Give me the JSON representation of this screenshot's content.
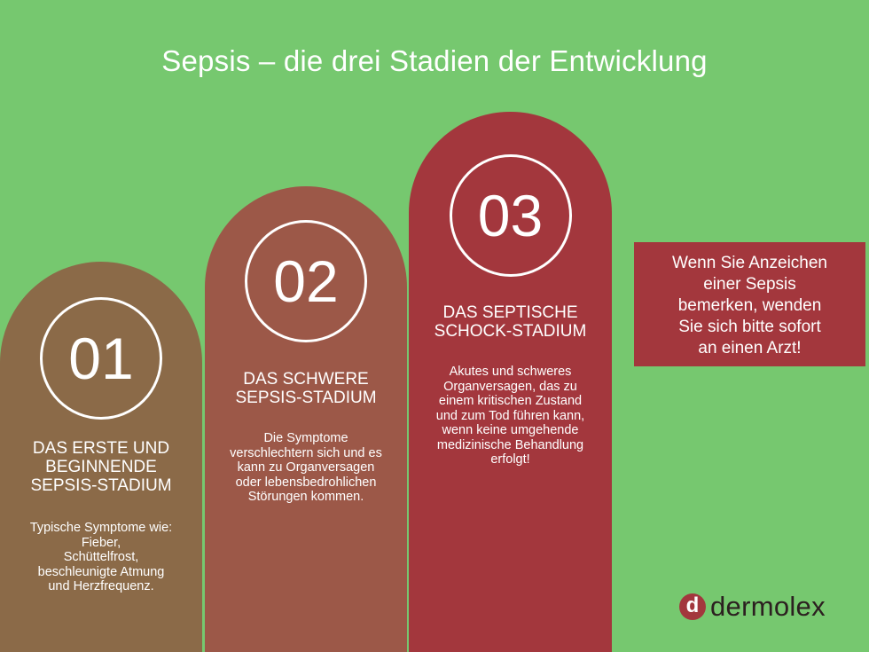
{
  "title": "Sepsis – die drei Stadien der Entwicklung",
  "stages": [
    {
      "number": "01",
      "heading": "DAS ERSTE UND\nBEGINNENDE\nSEPSIS-STADIUM",
      "text": "Typische Symptome wie:\nFieber,\nSchüttelfrost,\nbeschleunigte Atmung\nund Herzfrequenz.",
      "color": "#8b6a48"
    },
    {
      "number": "02",
      "heading": "DAS SCHWERE\nSEPSIS-STADIUM",
      "text": "Die Symptome\nverschlechtern sich und es\nkann zu Organversagen\noder lebensbedrohlichen\nStörungen kommen.",
      "color": "#9c5848"
    },
    {
      "number": "03",
      "heading": "DAS SEPTISCHE\nSCHOCK-STADIUM",
      "text": "Akutes und schweres\nOrganversagen, das zu\neinem kritischen Zustand\nund zum Tod führen kann,\nwenn keine umgehende\nmedizinische Behandlung\nerfolgt!",
      "color": "#a3373d"
    }
  ],
  "note": "Wenn Sie Anzeichen\neiner Sepsis\nbemerken, wenden\nSie sich bitte sofort\nan einen Arzt!",
  "logo": {
    "mark": "d",
    "text": "dermolex"
  },
  "colors": {
    "background": "#76c86f",
    "accent": "#a3373d"
  }
}
